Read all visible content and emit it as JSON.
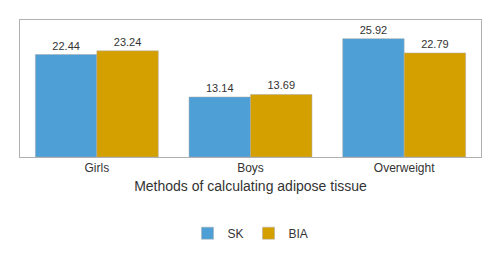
{
  "chart_data": {
    "type": "bar",
    "xlabel": "Methods of calculating adipose tissue",
    "categories": [
      "Girls",
      "Boys",
      "Overweight"
    ],
    "series": [
      {
        "name": "SK",
        "color": "#4d9fd6",
        "values": [
          22.44,
          13.14,
          25.92
        ]
      },
      {
        "name": "BIA",
        "color": "#d4a000",
        "values": [
          23.24,
          13.69,
          22.79
        ]
      }
    ],
    "ylim": [
      0,
      30
    ],
    "yticks": [],
    "grid": false,
    "legend": "bottom",
    "data_labels": true,
    "tick_labels": "x"
  }
}
